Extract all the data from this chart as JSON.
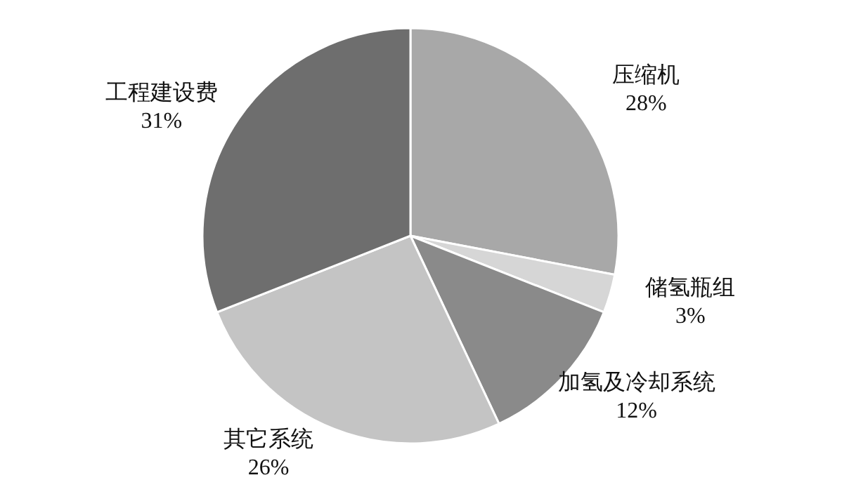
{
  "chart_data": {
    "type": "pie",
    "categories": [
      "压缩机",
      "储氢瓶组",
      "加氢及冷却系统",
      "其它系统",
      "工程建设费"
    ],
    "values": [
      28,
      3,
      12,
      26,
      31
    ],
    "colors": [
      "#a8a8a8",
      "#d6d6d6",
      "#8a8a8a",
      "#c4c4c4",
      "#6e6e6e"
    ],
    "value_labels": [
      "28%",
      "3%",
      "12%",
      "26%",
      "31%"
    ]
  }
}
